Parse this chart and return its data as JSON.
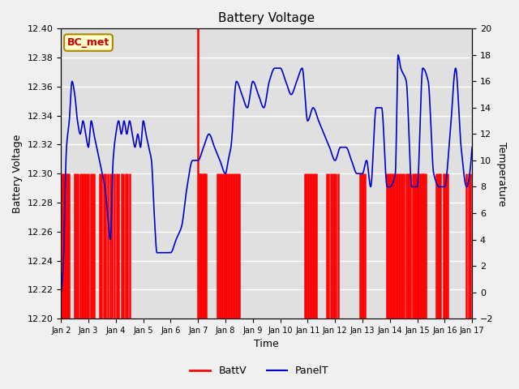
{
  "title": "Battery Voltage",
  "xlabel": "Time",
  "ylabel_left": "Battery Voltage",
  "ylabel_right": "Temperature",
  "ylim_left": [
    12.2,
    12.4
  ],
  "ylim_right": [
    -2,
    20
  ],
  "fig_facecolor": "#f0f0f0",
  "plot_facecolor": "#e0e0e0",
  "annotation_text": "BC_met",
  "red_color": "#ff0000",
  "blue_color": "#0000cc",
  "x_tick_labels": [
    "Jan 2",
    "Jan 3",
    "Jan 4",
    "Jan 5",
    "Jan 6",
    "Jan 7",
    "Jan 8",
    "Jan 9",
    "Jan 10",
    "Jan 11",
    "Jan 12",
    "Jan 13",
    "Jan 14",
    "Jan 15",
    "Jan 16",
    "Jan 17"
  ],
  "x_tick_positions": [
    1,
    2,
    3,
    4,
    5,
    6,
    7,
    8,
    9,
    10,
    11,
    12,
    13,
    14,
    15,
    16
  ],
  "blue_x": [
    1.0,
    1.05,
    1.1,
    1.15,
    1.2,
    1.3,
    1.4,
    1.5,
    1.6,
    1.7,
    1.8,
    1.9,
    2.0,
    2.05,
    2.1,
    2.2,
    2.3,
    2.4,
    2.5,
    2.6,
    2.7,
    2.8,
    2.9,
    3.0,
    3.1,
    3.2,
    3.3,
    3.4,
    3.5,
    3.6,
    3.7,
    3.8,
    3.9,
    4.0,
    4.1,
    4.2,
    4.3,
    4.4,
    4.5,
    4.6,
    4.7,
    4.8,
    4.9,
    5.0,
    5.2,
    5.4,
    5.6,
    5.8,
    6.0,
    6.2,
    6.4,
    6.6,
    6.8,
    7.0,
    7.1,
    7.2,
    7.4,
    7.6,
    7.8,
    8.0,
    8.2,
    8.4,
    8.6,
    8.8,
    9.0,
    9.2,
    9.4,
    9.6,
    9.8,
    10.0,
    10.2,
    10.4,
    10.6,
    10.8,
    11.0,
    11.2,
    11.4,
    11.6,
    11.8,
    12.0,
    12.15,
    12.3,
    12.5,
    12.7,
    12.9,
    13.0,
    13.2,
    13.3,
    13.4,
    13.6,
    13.8,
    14.0,
    14.2,
    14.4,
    14.6,
    14.8,
    15.0,
    15.2,
    15.4,
    15.6,
    15.8,
    16.0
  ],
  "blue_t": [
    0,
    1,
    3,
    8,
    11,
    13,
    16,
    15,
    13,
    12,
    13,
    12,
    11,
    12,
    13,
    12,
    11,
    10,
    9,
    8,
    6,
    4,
    10,
    12,
    13,
    12,
    13,
    12,
    13,
    12,
    11,
    12,
    11,
    13,
    12,
    11,
    10,
    6,
    3,
    3,
    3,
    3,
    3,
    3,
    4,
    5,
    8,
    10,
    10,
    11,
    12,
    11,
    10,
    9,
    10,
    11,
    16,
    15,
    14,
    16,
    15,
    14,
    16,
    17,
    17,
    16,
    15,
    16,
    17,
    13,
    14,
    13,
    12,
    11,
    10,
    11,
    11,
    10,
    9,
    9,
    10,
    8,
    14,
    14,
    8,
    8,
    9,
    18,
    17,
    16,
    8,
    8,
    17,
    16,
    9,
    8,
    8,
    12,
    17,
    11,
    8,
    11
  ]
}
